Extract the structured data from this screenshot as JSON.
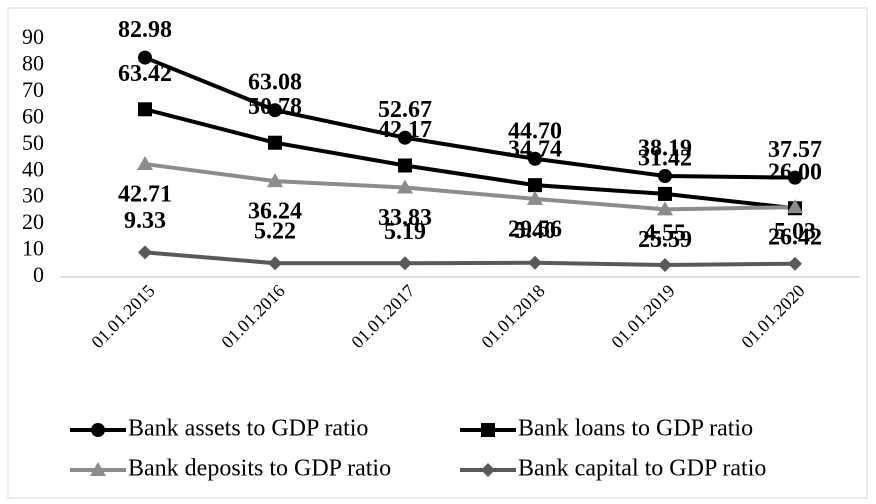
{
  "chart_data": {
    "type": "line",
    "categories": [
      "01.01.2015",
      "01.01.2016",
      "01.01.2017",
      "01.01.2018",
      "01.01.2019",
      "01.01.2020"
    ],
    "series": [
      {
        "name": "Bank assets to GDP ratio",
        "color": "#000000",
        "marker": "circle",
        "values": [
          82.98,
          63.08,
          52.67,
          44.7,
          38.19,
          37.57
        ],
        "value_labels": [
          "82.98",
          "63.08",
          "52.67",
          "44.70",
          "38.19",
          "37.57"
        ]
      },
      {
        "name": "Bank loans to GDP ratio",
        "color": "#000000",
        "marker": "square",
        "values": [
          63.42,
          50.78,
          42.17,
          34.74,
          31.42,
          26
        ],
        "value_labels": [
          "63.42",
          "50.78",
          "42.17",
          "34.74",
          "31.42",
          "26.00"
        ]
      },
      {
        "name": "Bank deposits to GDP ratio",
        "color": "#8c8c8c",
        "marker": "triangle",
        "values": [
          42.71,
          36.24,
          33.83,
          29.56,
          25.59,
          26.42
        ],
        "value_labels": [
          "42.71",
          "36.24",
          "33.83",
          "29.56",
          "25.59",
          "26.42"
        ]
      },
      {
        "name": "Bank capital to GDP ratio",
        "color": "#595959",
        "marker": "diamond",
        "values": [
          9.33,
          5.22,
          5.19,
          5.4,
          4.55,
          5.03
        ],
        "value_labels": [
          "9.33",
          "5.22",
          "5.19",
          "5.40",
          "4.55",
          "5.03"
        ]
      }
    ],
    "ylim": [
      0,
      90
    ],
    "yticks": [
      0,
      10,
      20,
      30,
      40,
      50,
      60,
      70,
      80,
      90
    ],
    "grid": false
  }
}
